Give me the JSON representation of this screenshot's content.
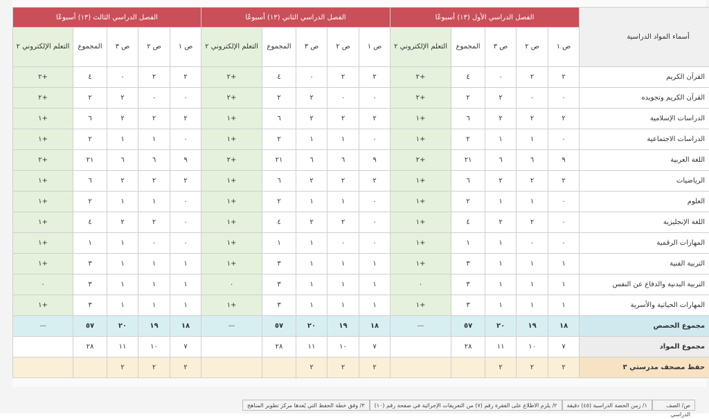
{
  "header": {
    "subjects_title": "أسماء المواد الدراسية",
    "semesters": [
      "الفصل الدراسي الأول (١٣) أسبوعًا",
      "الفصل الدراسي الثاني (١٣) أسبوعًا",
      "الفصل الدراسي الثالث (١٣) أسبوعًا"
    ],
    "col_p1": "ص ١",
    "col_p2": "ص ٢",
    "col_p3": "ص ٣",
    "col_total": "المجموع",
    "col_elearn": "التعلم الإلكتروني ٢"
  },
  "rows": [
    {
      "subject": "القرآن الكريم",
      "vals": [
        "٢",
        "٢",
        "٠",
        "٤",
        "+٢",
        "٢",
        "٢",
        "٠",
        "٤",
        "+٢",
        "٢",
        "٢",
        "٠",
        "٤",
        "+٢"
      ]
    },
    {
      "subject": "القرآن الكريم وتجويده",
      "vals": [
        "٠",
        "٠",
        "٢",
        "٢",
        "+٢",
        "٠",
        "٠",
        "٢",
        "٢",
        "+٢",
        "٠",
        "٠",
        "٢",
        "٢",
        "+٢"
      ]
    },
    {
      "subject": "الدراسات الإسلامية",
      "vals": [
        "٢",
        "٢",
        "٢",
        "٦",
        "+١",
        "٢",
        "٢",
        "٢",
        "٦",
        "+١",
        "٢",
        "٢",
        "٢",
        "٦",
        "+١"
      ]
    },
    {
      "subject": "الدراسات الاجتماعية",
      "vals": [
        "٠",
        "١",
        "١",
        "٢",
        "+١",
        "٠",
        "١",
        "١",
        "٢",
        "+١",
        "٠",
        "١",
        "١",
        "٢",
        "+١"
      ]
    },
    {
      "subject": "اللغة العربية",
      "vals": [
        "٩",
        "٦",
        "٦",
        "٢١",
        "+٢",
        "٩",
        "٦",
        "٦",
        "٢١",
        "+٢",
        "٩",
        "٦",
        "٦",
        "٢١",
        "+٢"
      ]
    },
    {
      "subject": "الرياضيات",
      "vals": [
        "٢",
        "٢",
        "٢",
        "٦",
        "+١",
        "٢",
        "٢",
        "٢",
        "٦",
        "+١",
        "٢",
        "٢",
        "٢",
        "٦",
        "+١"
      ]
    },
    {
      "subject": "العلوم",
      "vals": [
        "٠",
        "١",
        "١",
        "٢",
        "+١",
        "٠",
        "١",
        "١",
        "٢",
        "+١",
        "٠",
        "١",
        "١",
        "٢",
        "+١"
      ]
    },
    {
      "subject": "اللغة الإنجليزية",
      "vals": [
        "٠",
        "٢",
        "٢",
        "٤",
        "+١",
        "٠",
        "٢",
        "٢",
        "٤",
        "+١",
        "٠",
        "٢",
        "٢",
        "٤",
        "+١"
      ]
    },
    {
      "subject": "المهارات الرقمية",
      "vals": [
        "٠",
        "٠",
        "١",
        "١",
        "+١",
        "٠",
        "٠",
        "١",
        "١",
        "+١",
        "٠",
        "٠",
        "١",
        "١",
        "+١"
      ]
    },
    {
      "subject": "التربية الفنية",
      "vals": [
        "١",
        "١",
        "١",
        "٣",
        "+١",
        "١",
        "١",
        "١",
        "٣",
        "+١",
        "١",
        "١",
        "١",
        "٣",
        "+١"
      ]
    },
    {
      "subject": "التربية البدنية والدفاع عن النفس",
      "vals": [
        "١",
        "١",
        "١",
        "٣",
        "٠",
        "١",
        "١",
        "١",
        "٣",
        "٠",
        "١",
        "١",
        "١",
        "٣",
        "٠"
      ]
    },
    {
      "subject": "المهارات الحياتية والأسرية",
      "vals": [
        "١",
        "١",
        "١",
        "٣",
        "+١",
        "١",
        "١",
        "١",
        "٣",
        "+١",
        "١",
        "١",
        "١",
        "٣",
        "+١"
      ]
    }
  ],
  "sum_row": {
    "subject": "مجموع الحصص",
    "vals": [
      "١٨",
      "١٩",
      "٢٠",
      "٥٧",
      "—",
      "١٨",
      "١٩",
      "٢٠",
      "٥٧",
      "—",
      "١٨",
      "١٩",
      "٢٠",
      "٥٧",
      "—"
    ]
  },
  "materials_row": {
    "subject": "مجموع المواد",
    "vals": [
      "٧",
      "١٠",
      "١١",
      "٢٨",
      "",
      "٧",
      "١٠",
      "١١",
      "٢٨",
      "",
      "٧",
      "١٠",
      "١١",
      "٢٨",
      ""
    ]
  },
  "hifz_row": {
    "subject": "حفظ مصحف مدرستي ٣",
    "vals": [
      "٢",
      "٢",
      "٢",
      "",
      "",
      "٢",
      "٢",
      "٢",
      "",
      "",
      "٢",
      "٢",
      "٢",
      "",
      ""
    ]
  },
  "footnotes": {
    "label": "ص/ الصف الدراسي",
    "n1": "١/ زمن الحصة الدراسية (٤٥) دقيقة",
    "n2": "٢/ يلزم الاطلاع على الفقرة رقم (٧) من التعريفات الإجرائية في صفحة رقم (١٠)",
    "n3": "٣/ وفق خطة الحفظ التي يُعدها مركز تطوير المناهج"
  },
  "colors": {
    "semester_header": "#c94f58",
    "elearn_fill": "#e5f1dc",
    "sum_fill": "#d8eff2",
    "hifz_fill": "#fcefd8"
  }
}
